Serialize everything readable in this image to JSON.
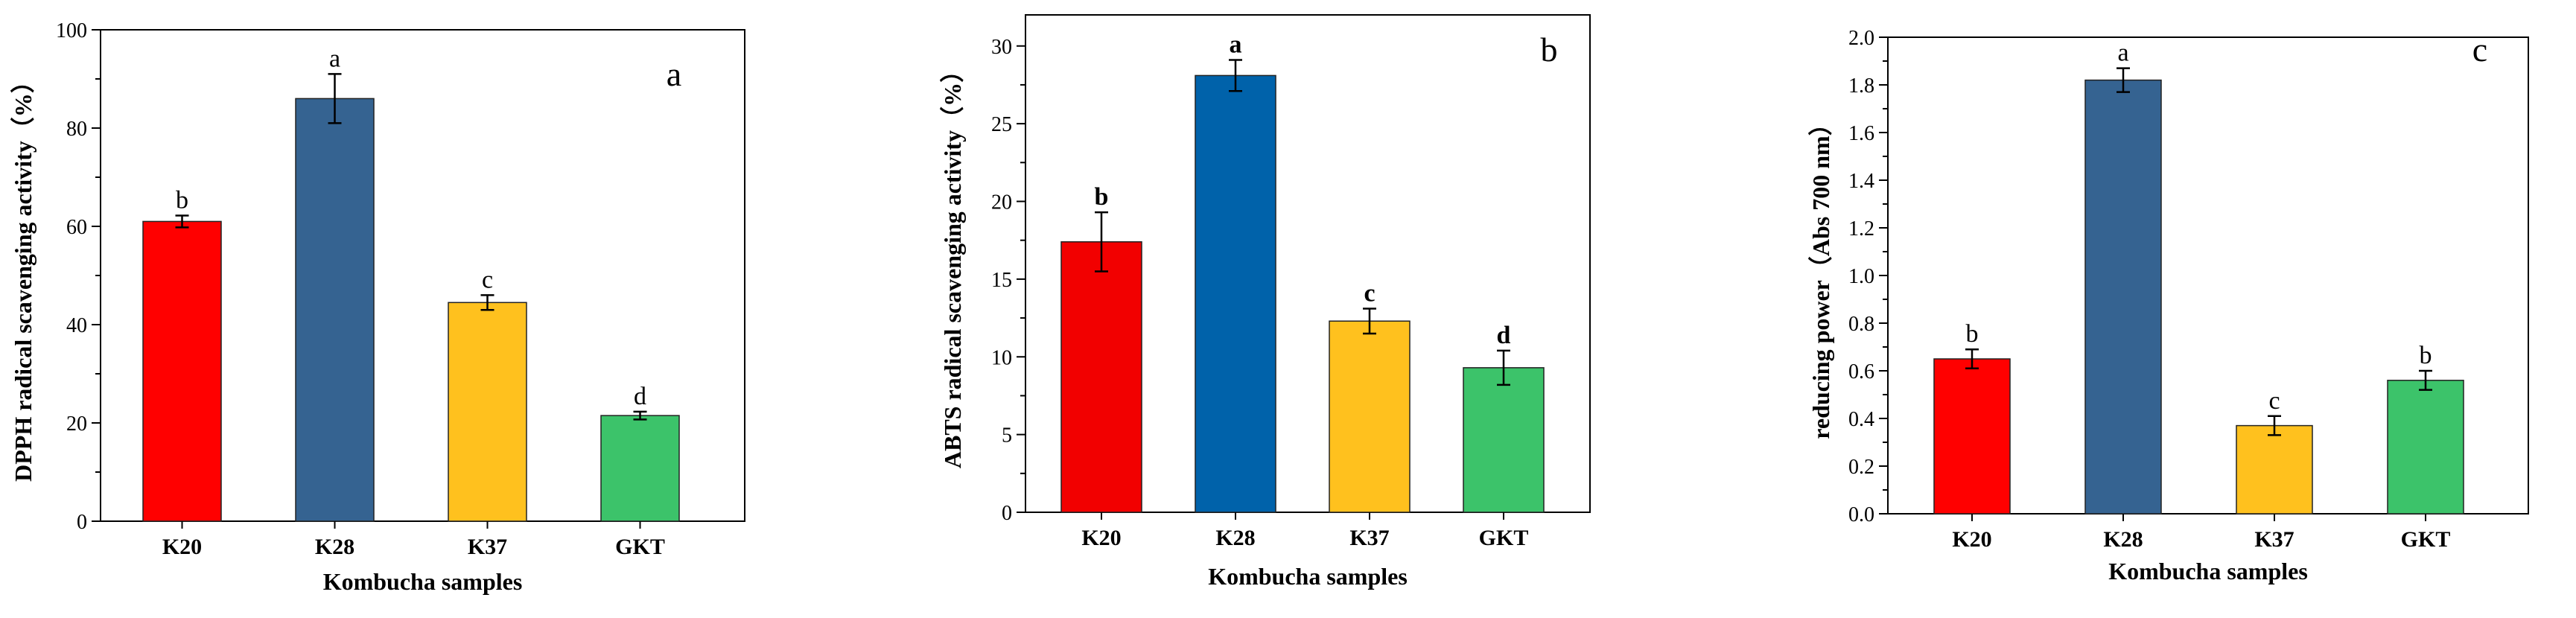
{
  "chart_data": [
    {
      "type": "bar",
      "panel_label": "a",
      "xlabel": "Kombucha samples",
      "ylabel": "DPPH radical scavenging activity（%）",
      "ylim": [
        0,
        100
      ],
      "yticks": [
        0,
        20,
        40,
        60,
        80,
        100
      ],
      "categories": [
        "K20",
        "K28",
        "K37",
        "GKT"
      ],
      "values": [
        61,
        86,
        44.5,
        21.5
      ],
      "errors": [
        1.2,
        5,
        1.5,
        0.8
      ],
      "significance": [
        "b",
        "a",
        "c",
        "d"
      ],
      "bold_significance": false,
      "colors": [
        "#ff0000",
        "#356391",
        "#ffc11e",
        "#3cc36a"
      ],
      "grid": false
    },
    {
      "type": "bar",
      "panel_label": "b",
      "xlabel": "Kombucha samples",
      "ylabel": "ABTS radical scavenging activity（%）",
      "ylim": [
        0,
        32
      ],
      "yticks": [
        0,
        5,
        10,
        15,
        20,
        25,
        30
      ],
      "categories": [
        "K20",
        "K28",
        "K37",
        "GKT"
      ],
      "values": [
        17.4,
        28.1,
        12.3,
        9.3
      ],
      "errors": [
        1.9,
        1.0,
        0.8,
        1.1
      ],
      "significance": [
        "b",
        "a",
        "c",
        "d"
      ],
      "bold_significance": true,
      "colors": [
        "#f20000",
        "#0062aa",
        "#ffc11e",
        "#3cc36a"
      ],
      "grid": false
    },
    {
      "type": "bar",
      "panel_label": "c",
      "xlabel": "Kombucha samples",
      "ylabel": "reducing power（Abs 700 nm）",
      "ylim": [
        0,
        2.0
      ],
      "yticks": [
        0.0,
        0.2,
        0.4,
        0.6,
        0.8,
        1.0,
        1.2,
        1.4,
        1.6,
        1.8,
        2.0
      ],
      "tick_decimals": 1,
      "categories": [
        "K20",
        "K28",
        "K37",
        "GKT"
      ],
      "values": [
        0.65,
        1.82,
        0.37,
        0.56
      ],
      "errors": [
        0.04,
        0.05,
        0.04,
        0.04
      ],
      "significance": [
        "b",
        "a",
        "c",
        "b"
      ],
      "bold_significance": false,
      "colors": [
        "#ff0000",
        "#356391",
        "#ffc11e",
        "#3cc36a"
      ],
      "grid": false
    }
  ]
}
